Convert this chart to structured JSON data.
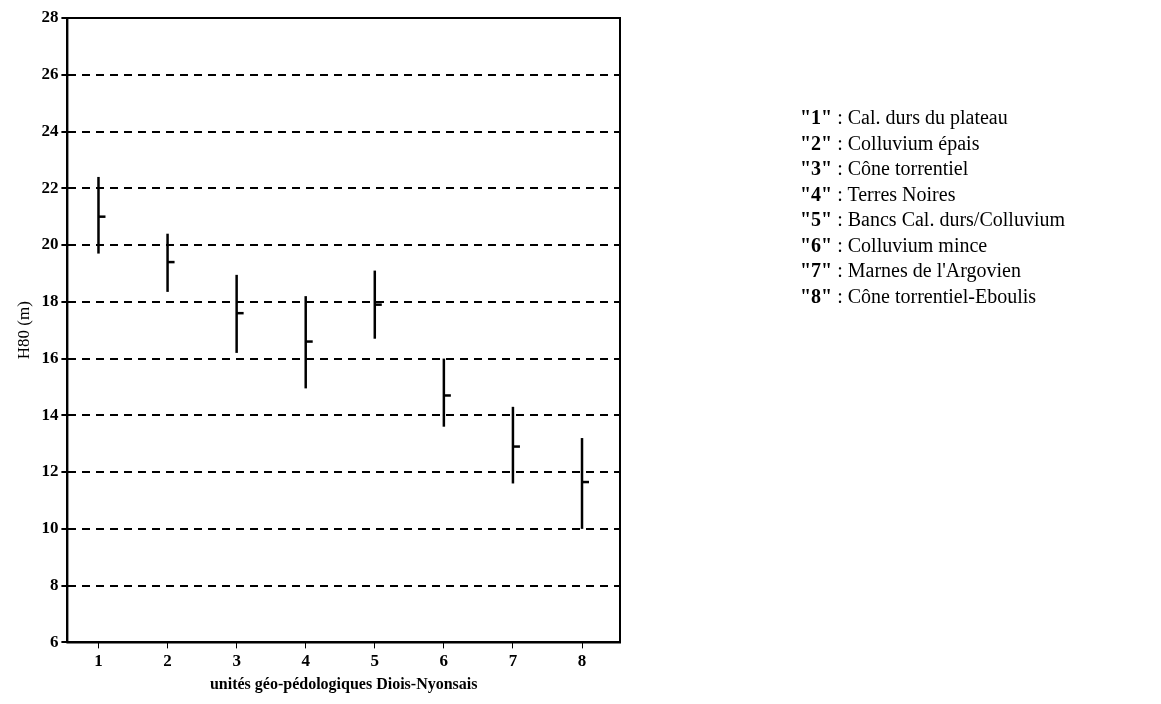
{
  "chart_data": {
    "type": "scatter",
    "xlabel": "unités géo-pédologiques Diois-Nyonsais",
    "ylabel": "H80 (m)",
    "categories": [
      "1",
      "2",
      "3",
      "4",
      "5",
      "6",
      "7",
      "8"
    ],
    "series": [
      {
        "color": "#000000",
        "values": [
          21.0,
          19.4,
          17.6,
          16.6,
          17.9,
          14.7,
          12.9,
          11.65
        ],
        "errors": [
          [
            19.7,
            22.4
          ],
          [
            18.35,
            20.4
          ],
          [
            16.2,
            18.95
          ],
          [
            14.95,
            18.2
          ],
          [
            16.7,
            19.1
          ],
          [
            13.6,
            16.0
          ],
          [
            11.6,
            14.3
          ],
          [
            10.0,
            13.2
          ]
        ]
      }
    ],
    "ylim": [
      6,
      28
    ],
    "yticks": [
      6,
      8,
      10,
      12,
      14,
      16,
      18,
      20,
      22,
      24,
      26,
      28
    ],
    "grid": "y",
    "legend": false,
    "annotations": [
      "\"1\" : Cal. durs du plateau",
      "\"2\" : Colluvium épais",
      "\"3\" : Cône torrentiel",
      "\"4\" : Terres Noires",
      "\"5\" : Bancs Cal. durs/Colluvium",
      "\"6\" : Colluvium mince",
      "\"7\" : Marnes de l'Argovien",
      "\"8\" : Cône torrentiel-Eboulis"
    ]
  }
}
